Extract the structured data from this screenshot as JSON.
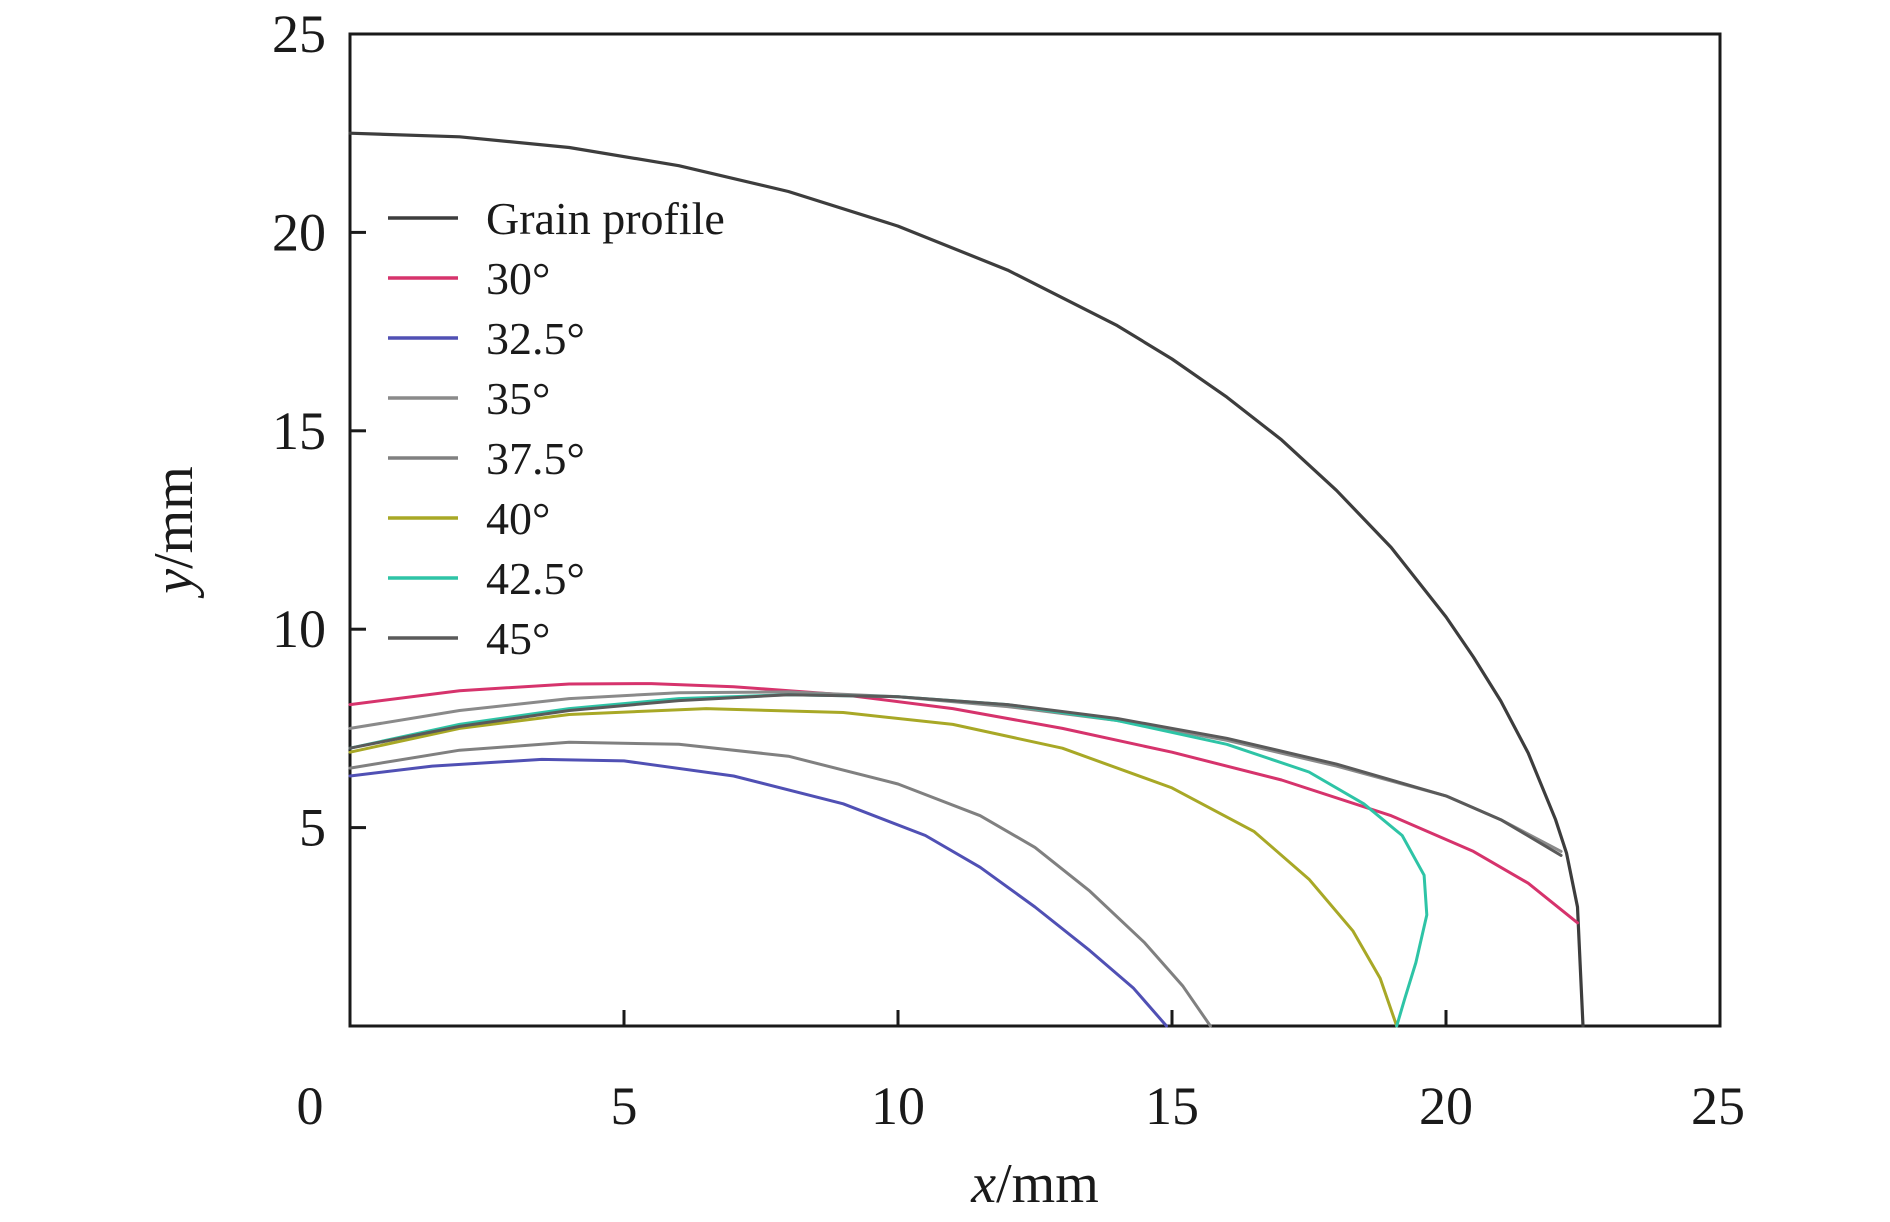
{
  "chart_data": {
    "type": "line",
    "title": "",
    "xlabel": {
      "var": "x",
      "unit": "/mm"
    },
    "ylabel": {
      "var": "y",
      "unit": "/mm"
    },
    "xlim": [
      0,
      25
    ],
    "ylim": [
      0,
      25
    ],
    "xticks": [
      0,
      5,
      10,
      15,
      20,
      25
    ],
    "yticks": [
      5,
      10,
      15,
      20,
      25
    ],
    "xtick_labels": [
      "0",
      "5",
      "10",
      "15",
      "20",
      "25"
    ],
    "ytick_labels": [
      "5",
      "10",
      "15",
      "20",
      "25"
    ],
    "grid": false,
    "legend_position": "upper-left",
    "series": [
      {
        "name": "Grain profile",
        "color": "#3d3d3d",
        "x": [
          0,
          2,
          4,
          6,
          8,
          10,
          12,
          14,
          15,
          16,
          17,
          18,
          19,
          20,
          20.5,
          21,
          21.5,
          22,
          22.2,
          22.4,
          22.5
        ],
        "y": [
          22.5,
          22.41,
          22.14,
          21.68,
          21.03,
          20.16,
          19.05,
          17.65,
          16.81,
          15.85,
          14.77,
          13.5,
          12.06,
          10.31,
          9.3,
          8.19,
          6.88,
          5.2,
          4.35,
          3.0,
          0.0
        ]
      },
      {
        "name": "30°",
        "color": "#d6336c",
        "x": [
          0,
          2,
          4,
          5.5,
          7,
          9,
          11,
          13,
          15,
          17,
          19,
          20.5,
          21.5,
          22.4
        ],
        "y": [
          8.1,
          8.45,
          8.62,
          8.63,
          8.55,
          8.35,
          8.0,
          7.5,
          6.9,
          6.2,
          5.3,
          4.4,
          3.6,
          2.6
        ]
      },
      {
        "name": "32.5°",
        "color": "#5050b4",
        "x": [
          0,
          1.5,
          3.5,
          5,
          7,
          9,
          10.5,
          11.5,
          12.5,
          13.5,
          14.3,
          14.9
        ],
        "y": [
          6.3,
          6.55,
          6.72,
          6.68,
          6.3,
          5.6,
          4.8,
          4.0,
          3.0,
          1.9,
          0.95,
          0.0
        ]
      },
      {
        "name": "35°",
        "color": "#8a8a8a",
        "x": [
          0,
          2,
          4,
          6,
          8,
          10,
          12,
          14,
          16,
          18,
          20,
          21,
          22.1
        ],
        "y": [
          7.5,
          7.95,
          8.25,
          8.4,
          8.42,
          8.3,
          8.05,
          7.7,
          7.2,
          6.55,
          5.8,
          5.2,
          4.4
        ]
      },
      {
        "name": "37.5°",
        "color": "#808080",
        "x": [
          0,
          2,
          4,
          6,
          8,
          10,
          11.5,
          12.5,
          13.5,
          14.5,
          15.2,
          15.7
        ],
        "y": [
          6.5,
          6.95,
          7.15,
          7.1,
          6.8,
          6.1,
          5.3,
          4.5,
          3.4,
          2.1,
          1.0,
          0.0
        ]
      },
      {
        "name": "40°",
        "color": "#a8a826",
        "x": [
          0,
          2,
          4,
          6.5,
          9,
          11,
          13,
          15,
          16.5,
          17.5,
          18.3,
          18.8,
          19.1
        ],
        "y": [
          6.9,
          7.5,
          7.85,
          8.0,
          7.9,
          7.6,
          7.0,
          6.0,
          4.9,
          3.7,
          2.4,
          1.2,
          0.0
        ]
      },
      {
        "name": "42.5°",
        "color": "#2ec4a6",
        "x": [
          0,
          2,
          4,
          6,
          8,
          10,
          12,
          14,
          16,
          17.5,
          18.5,
          19.2,
          19.6,
          19.65,
          19.45,
          19.25,
          19.1
        ],
        "y": [
          7.0,
          7.6,
          8.0,
          8.25,
          8.35,
          8.3,
          8.1,
          7.7,
          7.1,
          6.4,
          5.6,
          4.8,
          3.8,
          2.8,
          1.6,
          0.7,
          0.0
        ]
      },
      {
        "name": "45°",
        "color": "#5a5a5a",
        "x": [
          0,
          2,
          4,
          6,
          8,
          10,
          12,
          14,
          16,
          18,
          20,
          21,
          22.1
        ],
        "y": [
          7.0,
          7.55,
          7.95,
          8.2,
          8.35,
          8.3,
          8.1,
          7.75,
          7.25,
          6.6,
          5.8,
          5.2,
          4.3
        ]
      }
    ]
  }
}
